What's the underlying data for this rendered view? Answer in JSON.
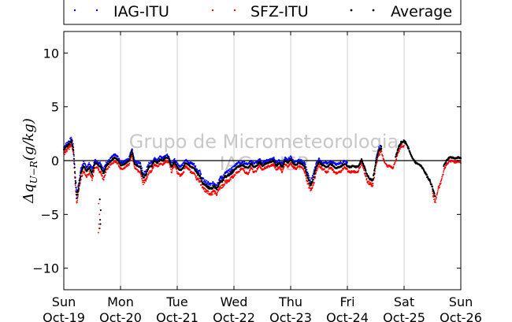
{
  "chart_data": {
    "type": "scatter",
    "title": "",
    "ylabel": "Δq_{U−R}(g/kg)",
    "ylabel_main": "Δq",
    "ylabel_sub": "U−R",
    "ylabel_unit": "(g/kg)",
    "xlabel": "",
    "ylim": [
      -12,
      12
    ],
    "yticks": [
      -10,
      -5,
      0,
      5,
      10
    ],
    "xlim": [
      0,
      7
    ],
    "xticks": [
      {
        "x": 0,
        "day": "Sun",
        "date": "Oct-19"
      },
      {
        "x": 1,
        "day": "Mon",
        "date": "Oct-20"
      },
      {
        "x": 2,
        "day": "Tue",
        "date": "Oct-21"
      },
      {
        "x": 3,
        "day": "Wed",
        "date": "Oct-22"
      },
      {
        "x": 4,
        "day": "Thu",
        "date": "Oct-23"
      },
      {
        "x": 5,
        "day": "Fri",
        "date": "Oct-24"
      },
      {
        "x": 6,
        "day": "Sat",
        "date": "Oct-25"
      },
      {
        "x": 7,
        "day": "Sun",
        "date": "Oct-26"
      }
    ],
    "grid": "vertical",
    "zero_line": true,
    "legend_position": "top",
    "watermark": [
      "Grupo de Micrometeorologia",
      "IAG - USP"
    ],
    "avg_profile": [
      [
        0.0,
        1.0
      ],
      [
        0.05,
        1.3
      ],
      [
        0.1,
        1.6
      ],
      [
        0.14,
        1.8
      ],
      [
        0.17,
        1.0
      ],
      [
        0.2,
        -1.5
      ],
      [
        0.23,
        -3.6
      ],
      [
        0.26,
        -2.5
      ],
      [
        0.3,
        -1.2
      ],
      [
        0.35,
        -0.5
      ],
      [
        0.4,
        -1.0
      ],
      [
        0.45,
        -0.6
      ],
      [
        0.5,
        -1.2
      ],
      [
        0.55,
        -0.2
      ],
      [
        0.6,
        -0.4
      ],
      [
        0.65,
        -0.6
      ],
      [
        0.7,
        -1.2
      ],
      [
        0.75,
        -0.5
      ],
      [
        0.8,
        -0.2
      ],
      [
        0.85,
        0.1
      ],
      [
        0.9,
        0.3
      ],
      [
        0.95,
        0.1
      ],
      [
        1.0,
        -0.4
      ],
      [
        1.05,
        -0.4
      ],
      [
        1.1,
        -0.2
      ],
      [
        1.15,
        0.0
      ],
      [
        1.2,
        0.9
      ],
      [
        1.25,
        -0.3
      ],
      [
        1.3,
        -0.5
      ],
      [
        1.35,
        -0.6
      ],
      [
        1.4,
        -1.6
      ],
      [
        1.45,
        -1.3
      ],
      [
        1.5,
        -0.6
      ],
      [
        1.55,
        -0.5
      ],
      [
        1.6,
        0.0
      ],
      [
        1.65,
        -0.2
      ],
      [
        1.7,
        0.1
      ],
      [
        1.75,
        0.0
      ],
      [
        1.8,
        0.3
      ],
      [
        1.85,
        0.2
      ],
      [
        1.9,
        -0.6
      ],
      [
        1.95,
        -0.1
      ],
      [
        2.0,
        -0.6
      ],
      [
        2.05,
        -0.9
      ],
      [
        2.1,
        -0.7
      ],
      [
        2.15,
        -0.2
      ],
      [
        2.2,
        -0.4
      ],
      [
        2.25,
        -0.6
      ],
      [
        2.3,
        -0.7
      ],
      [
        2.35,
        -1.2
      ],
      [
        2.4,
        -1.4
      ],
      [
        2.45,
        -2.1
      ],
      [
        2.5,
        -2.3
      ],
      [
        2.55,
        -2.5
      ],
      [
        2.6,
        -2.6
      ],
      [
        2.65,
        -2.4
      ],
      [
        2.7,
        -2.6
      ],
      [
        2.75,
        -2.0
      ],
      [
        2.8,
        -1.9
      ],
      [
        2.85,
        -1.5
      ],
      [
        2.9,
        -1.4
      ],
      [
        2.95,
        -1.2
      ],
      [
        3.0,
        -0.9
      ],
      [
        3.05,
        -0.6
      ],
      [
        3.1,
        -0.5
      ],
      [
        3.15,
        -0.4
      ],
      [
        3.2,
        -0.6
      ],
      [
        3.25,
        -0.7
      ],
      [
        3.3,
        -0.3
      ],
      [
        3.35,
        -0.6
      ],
      [
        3.4,
        -0.5
      ],
      [
        3.45,
        -0.1
      ],
      [
        3.5,
        -0.5
      ],
      [
        3.55,
        -0.3
      ],
      [
        3.6,
        -0.2
      ],
      [
        3.65,
        -0.1
      ],
      [
        3.7,
        0.0
      ],
      [
        3.75,
        -0.5
      ],
      [
        3.8,
        -0.2
      ],
      [
        3.85,
        -0.6
      ],
      [
        3.9,
        0.0
      ],
      [
        3.95,
        -0.2
      ],
      [
        4.0,
        0.1
      ],
      [
        4.05,
        -0.3
      ],
      [
        4.1,
        -0.4
      ],
      [
        4.15,
        -0.2
      ],
      [
        4.2,
        -0.3
      ],
      [
        4.25,
        -0.6
      ],
      [
        4.3,
        -1.6
      ],
      [
        4.35,
        -2.3
      ],
      [
        4.4,
        -1.7
      ],
      [
        4.45,
        -0.6
      ],
      [
        4.5,
        -0.1
      ],
      [
        4.55,
        -0.4
      ],
      [
        4.6,
        -0.5
      ],
      [
        4.65,
        -0.6
      ],
      [
        4.7,
        -0.3
      ],
      [
        4.75,
        -0.5
      ],
      [
        4.8,
        -0.7
      ],
      [
        4.85,
        -0.6
      ],
      [
        4.9,
        -0.5
      ],
      [
        4.95,
        -0.3
      ],
      [
        5.0,
        -0.5
      ],
      [
        5.05,
        -0.6
      ],
      [
        5.1,
        -0.5
      ],
      [
        5.15,
        -0.6
      ],
      [
        5.2,
        -0.5
      ],
      [
        5.25,
        0.1
      ],
      [
        5.3,
        -0.6
      ],
      [
        5.35,
        -1.4
      ],
      [
        5.4,
        -1.7
      ],
      [
        5.45,
        -1.8
      ],
      [
        5.5,
        -0.2
      ],
      [
        5.55,
        0.9
      ],
      [
        5.6,
        1.2
      ],
      [
        5.65,
        0.3
      ],
      [
        5.7,
        -0.2
      ],
      [
        5.75,
        -0.1
      ],
      [
        5.8,
        -0.4
      ],
      [
        5.85,
        0.3
      ],
      [
        5.9,
        1.2
      ],
      [
        5.95,
        1.7
      ],
      [
        6.0,
        1.8
      ],
      [
        6.05,
        1.5
      ],
      [
        6.1,
        0.8
      ],
      [
        6.15,
        0.2
      ],
      [
        6.2,
        -0.2
      ],
      [
        6.25,
        -0.3
      ],
      [
        6.3,
        -0.5
      ],
      [
        6.35,
        -0.9
      ],
      [
        6.4,
        -1.4
      ],
      [
        6.45,
        -1.8
      ],
      [
        6.5,
        -2.5
      ],
      [
        6.55,
        -3.4
      ],
      [
        6.6,
        -2.2
      ],
      [
        6.65,
        -1.5
      ],
      [
        6.7,
        -0.5
      ],
      [
        6.75,
        0.0
      ],
      [
        6.8,
        0.3
      ],
      [
        6.85,
        0.3
      ],
      [
        6.9,
        0.2
      ],
      [
        6.95,
        0.3
      ],
      [
        7.0,
        0.2
      ]
    ],
    "outliers": [
      {
        "x": 0.63,
        "y": -6.3
      },
      {
        "x": 0.64,
        "y": -5.5
      },
      {
        "x": 0.65,
        "y": -4.6
      },
      {
        "x": 0.635,
        "y": -3.6
      },
      {
        "x": 0.645,
        "y": -5.9
      }
    ],
    "series": [
      {
        "name": "IAG-ITU",
        "color": "#0000ff",
        "offset": 0.25,
        "segments": [
          [
            0.0,
            5.0
          ],
          [
            5.5,
            5.6
          ]
        ]
      },
      {
        "name": "SFZ-ITU",
        "color": "#ff0000",
        "offset": -0.35,
        "segments": [
          [
            0.0,
            6.0
          ],
          [
            6.5,
            7.0
          ]
        ]
      },
      {
        "name": "Average",
        "color": "#000000",
        "offset": 0.0,
        "segments": [
          [
            0.0,
            5.6
          ],
          [
            5.85,
            6.55
          ],
          [
            6.7,
            7.0
          ]
        ]
      }
    ]
  }
}
